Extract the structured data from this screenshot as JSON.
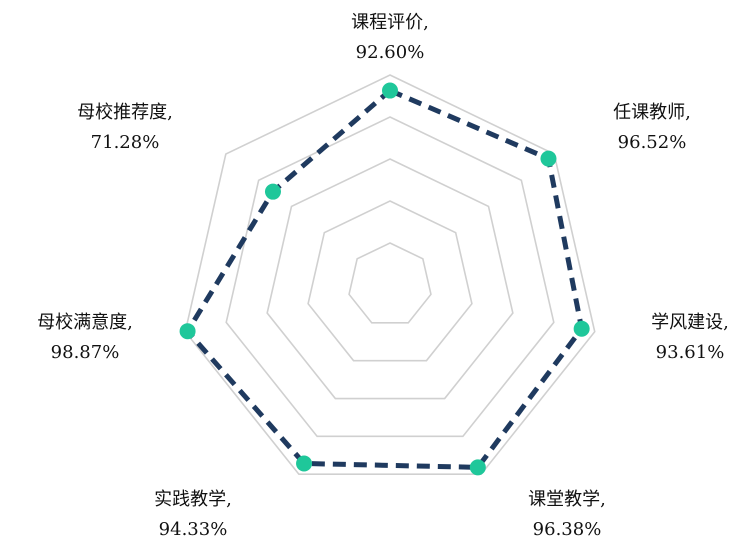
{
  "chart_data": {
    "type": "radar",
    "rmax": 100,
    "rings": [
      20,
      40,
      60,
      80,
      100
    ],
    "grid": true,
    "series": [
      {
        "values": [
          92.6,
          96.52,
          93.61,
          96.38,
          94.33,
          98.87,
          71.28
        ],
        "line_color": "#1f3a5f",
        "marker_color": "#1fc79a",
        "line_style": "dashed"
      }
    ],
    "axes": [
      {
        "name": "课程评价,",
        "value_label": "92.60%"
      },
      {
        "name": "任课教师,",
        "value_label": "96.52%"
      },
      {
        "name": "学风建设,",
        "value_label": "93.61%"
      },
      {
        "name": "课堂教学,",
        "value_label": "96.38%"
      },
      {
        "name": "实践教学,",
        "value_label": "94.33%"
      },
      {
        "name": "母校满意度,",
        "value_label": "98.87%"
      },
      {
        "name": "母校推荐度,",
        "value_label": "71.28%"
      }
    ],
    "grid_color": "#d0d0d0"
  }
}
